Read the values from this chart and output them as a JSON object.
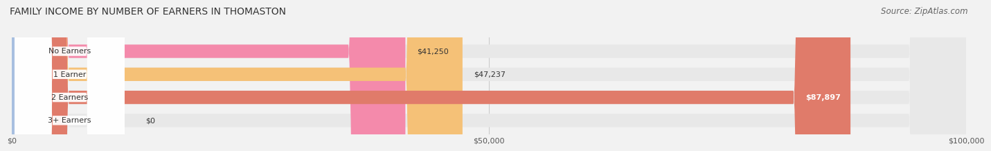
{
  "title": "FAMILY INCOME BY NUMBER OF EARNERS IN THOMASTON",
  "source": "Source: ZipAtlas.com",
  "categories": [
    "No Earners",
    "1 Earner",
    "2 Earners",
    "3+ Earners"
  ],
  "values": [
    41250,
    47237,
    87897,
    0
  ],
  "bar_colors": [
    "#f48aab",
    "#f5c177",
    "#e07b6a",
    "#a8bfe0"
  ],
  "label_colors": [
    "#000000",
    "#000000",
    "#ffffff",
    "#000000"
  ],
  "xlim": [
    0,
    100000
  ],
  "xticks": [
    0,
    50000,
    100000
  ],
  "xtick_labels": [
    "$0",
    "$50,000",
    "$100,000"
  ],
  "value_labels": [
    "$41,250",
    "$47,237",
    "$87,897",
    "$0"
  ],
  "background_color": "#f2f2f2",
  "bar_bg_full_color": "#e8e8e8",
  "title_fontsize": 10,
  "source_fontsize": 8.5,
  "bar_height": 0.58,
  "figsize": [
    14.06,
    2.33
  ]
}
